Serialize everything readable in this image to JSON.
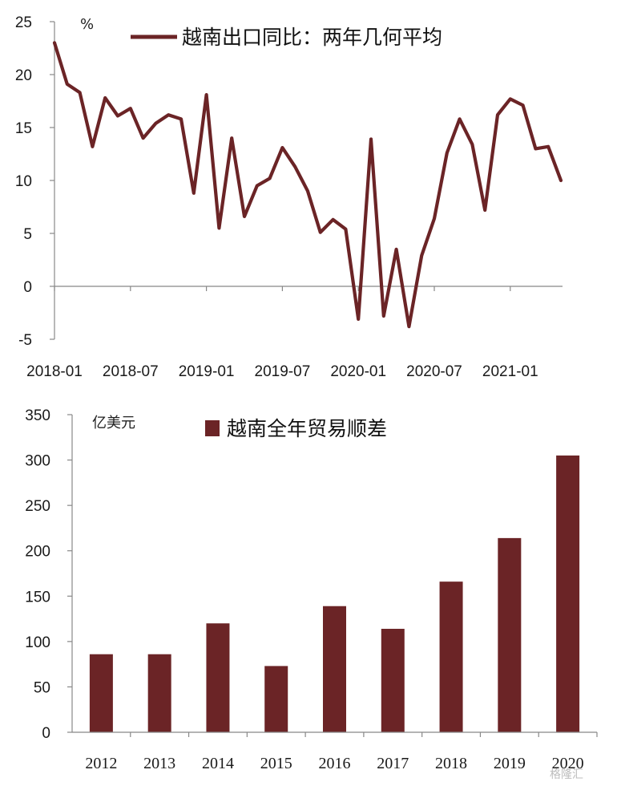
{
  "chart_data": [
    {
      "type": "line",
      "title": "",
      "unit": "%",
      "legend": {
        "label": "越南出口同比：两年几何平均",
        "placement": "top"
      },
      "color": "#6b2426",
      "ylim": [
        -5,
        25
      ],
      "yticks": [
        25,
        20,
        15,
        10,
        5,
        0,
        -5
      ],
      "x_tick_labels": [
        "2018-01",
        "2018-07",
        "2019-01",
        "2019-07",
        "2020-01",
        "2020-07",
        "2021-01"
      ],
      "x": [
        "2018-01",
        "2018-02",
        "2018-03",
        "2018-04",
        "2018-05",
        "2018-06",
        "2018-07",
        "2018-08",
        "2018-09",
        "2018-10",
        "2018-11",
        "2018-12",
        "2019-01",
        "2019-02",
        "2019-03",
        "2019-04",
        "2019-05",
        "2019-06",
        "2019-07",
        "2019-08",
        "2019-09",
        "2019-10",
        "2019-11",
        "2019-12",
        "2020-01",
        "2020-02",
        "2020-03",
        "2020-04",
        "2020-05",
        "2020-06",
        "2020-07",
        "2020-08",
        "2020-09",
        "2020-10",
        "2020-11",
        "2020-12",
        "2021-01",
        "2021-02",
        "2021-03",
        "2021-04",
        "2021-05"
      ],
      "values": [
        23.0,
        19.1,
        18.3,
        13.2,
        17.8,
        16.1,
        16.8,
        14.0,
        15.4,
        16.2,
        15.8,
        8.8,
        18.1,
        5.5,
        14.0,
        6.6,
        9.5,
        10.2,
        13.1,
        11.3,
        9.0,
        5.1,
        6.3,
        5.4,
        -3.1,
        13.9,
        -2.8,
        3.5,
        -3.8,
        2.9,
        6.4,
        12.6,
        15.8,
        13.4,
        7.2,
        16.2,
        17.7,
        17.1,
        13.0,
        13.2,
        10.0
      ]
    },
    {
      "type": "bar",
      "title": "",
      "unit": "亿美元",
      "legend": {
        "label": "越南全年贸易顺差",
        "placement": "top"
      },
      "color": "#6b2426",
      "ylim": [
        0,
        350
      ],
      "yticks": [
        350,
        300,
        250,
        200,
        150,
        100,
        50,
        0
      ],
      "categories": [
        "2012",
        "2013",
        "2014",
        "2015",
        "2016",
        "2017",
        "2018",
        "2019",
        "2020"
      ],
      "values": [
        86,
        86,
        120,
        73,
        139,
        114,
        166,
        214,
        305
      ]
    }
  ],
  "watermark": "格隆汇"
}
